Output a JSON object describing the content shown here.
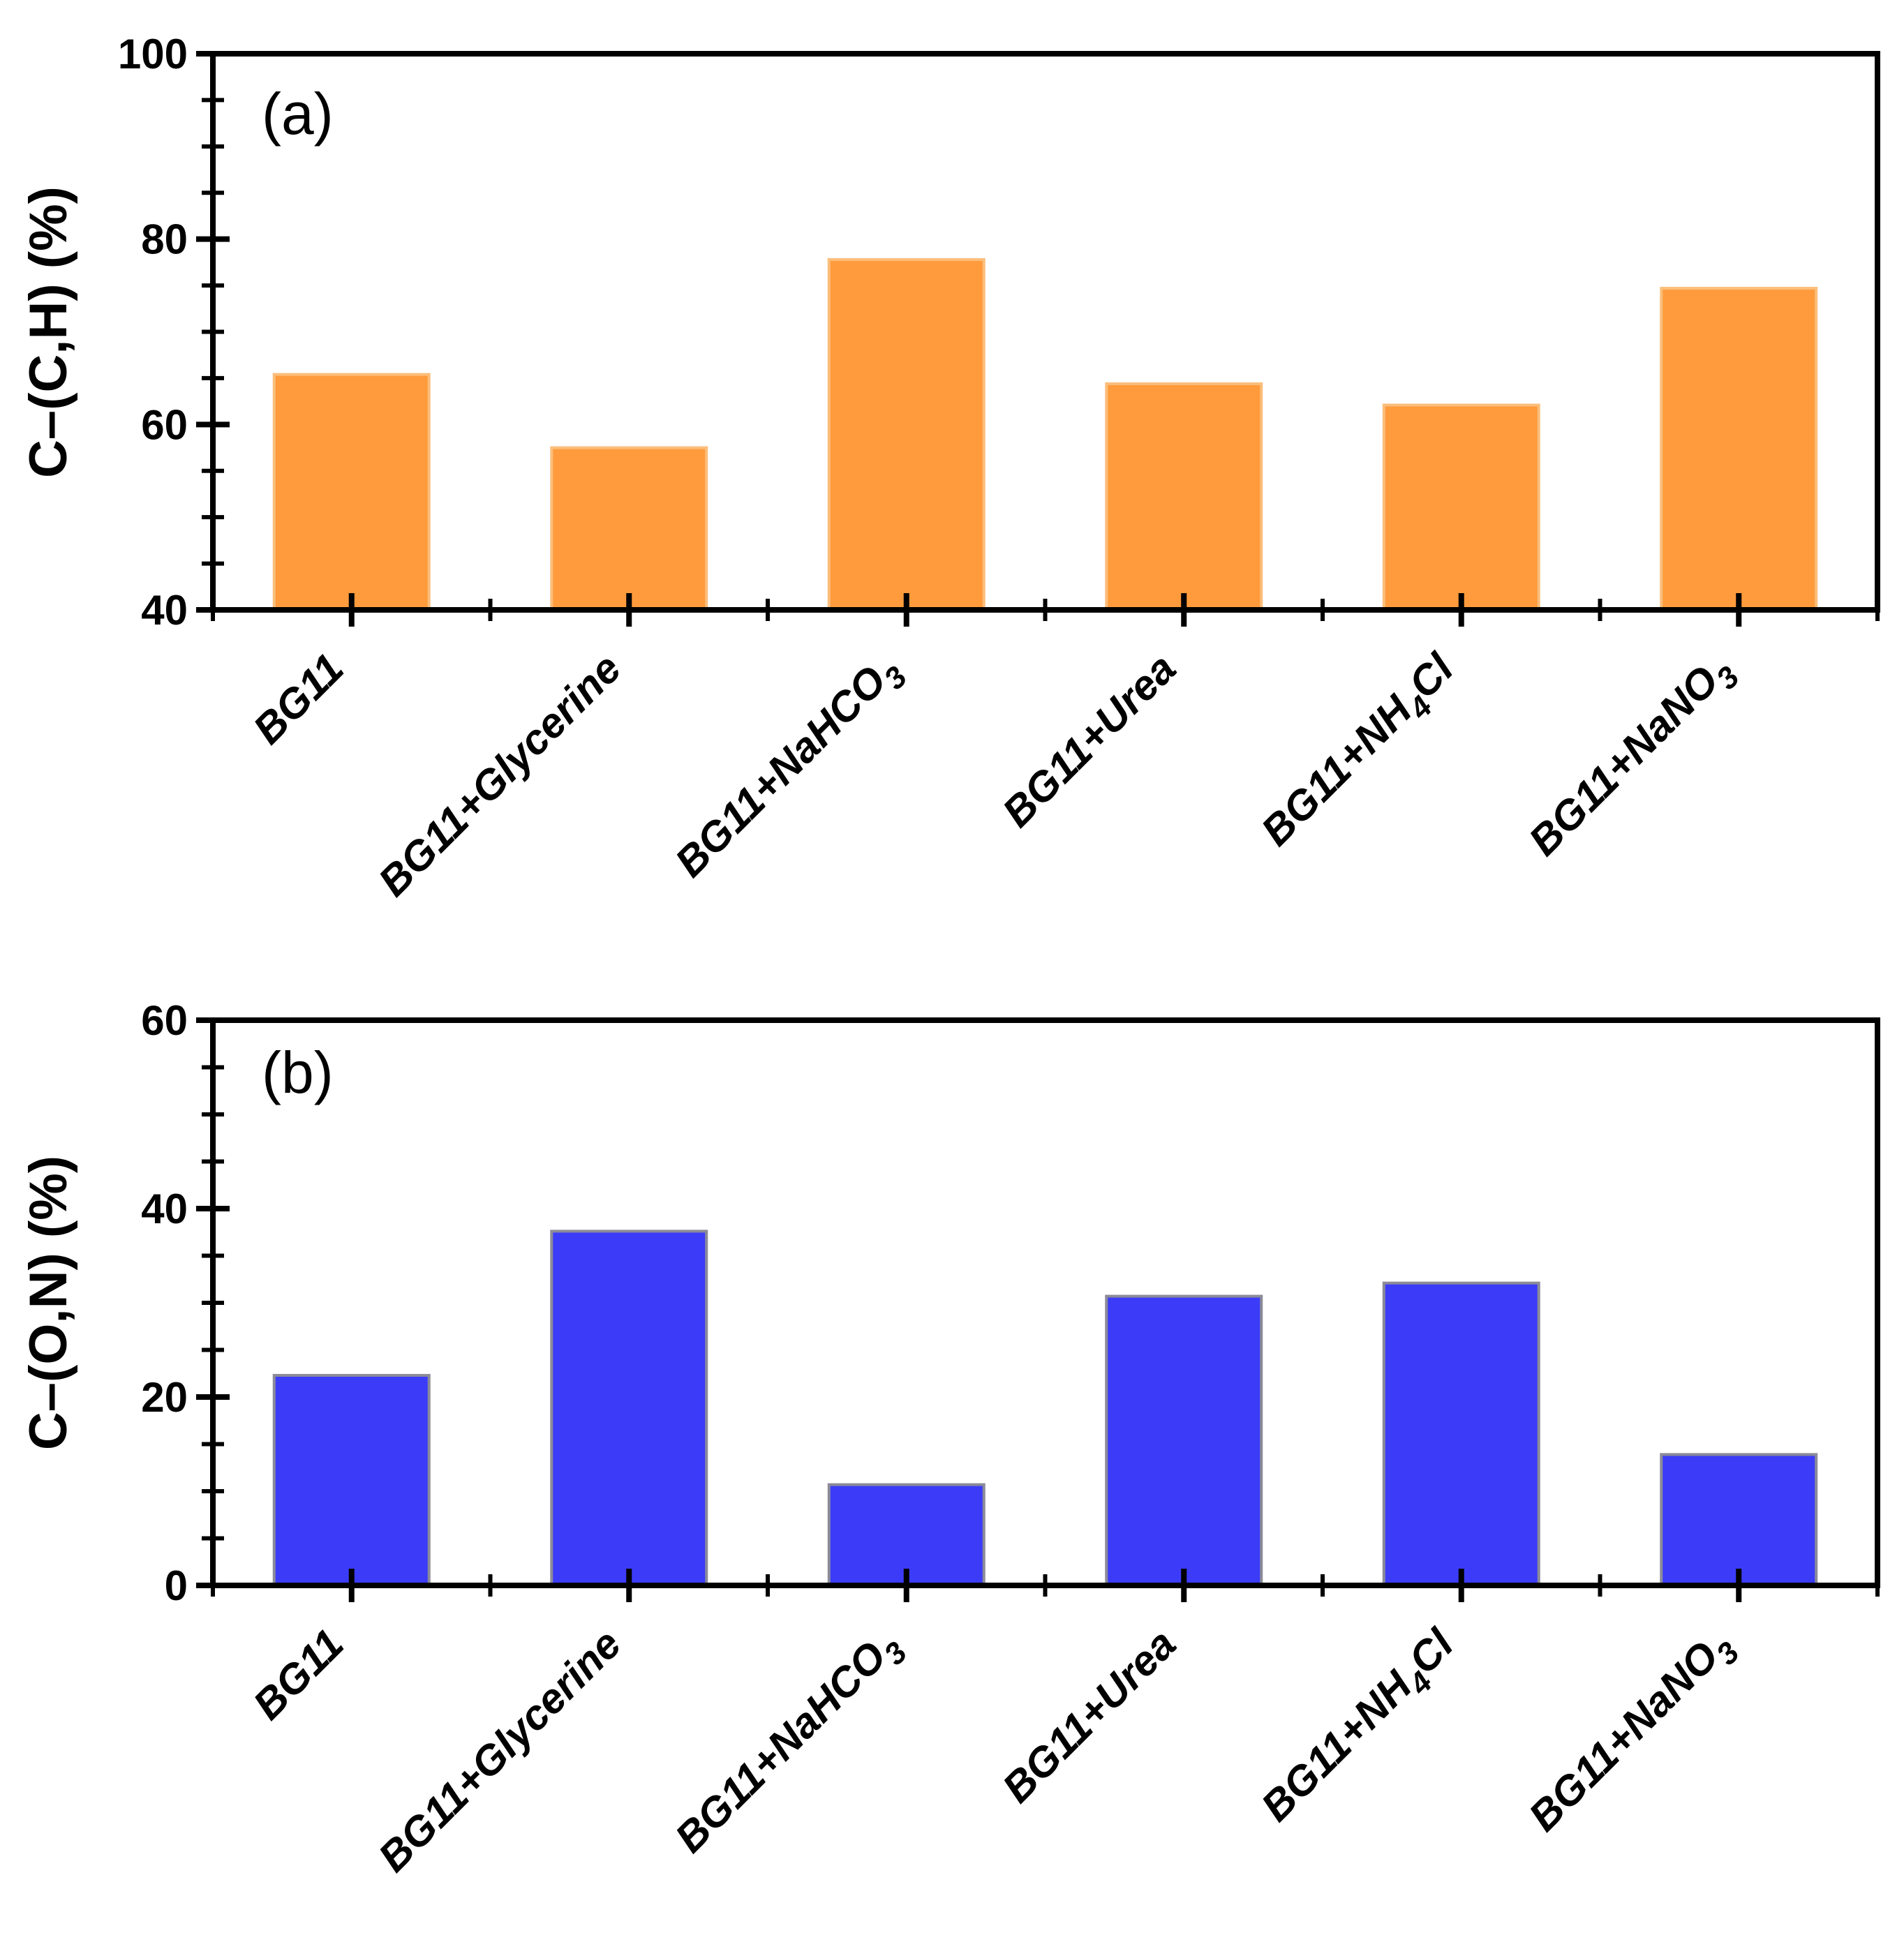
{
  "figure": {
    "background": "#FFFFFF",
    "ink_color": "#000000"
  },
  "chart_data": [
    {
      "type": "bar",
      "panel_label": "(a)",
      "title": "",
      "xlabel": "",
      "ylabel": "C–(C,H)  (%)",
      "categories": [
        "BG11",
        "BG11+Glycerine",
        "BG11+NaHCO3",
        "BG11+Urea",
        "BG11+NH4Cl",
        "BG11+NaNO3"
      ],
      "categories_rich": [
        [
          {
            "t": "BG11"
          }
        ],
        [
          {
            "t": "BG11+Glycerine"
          }
        ],
        [
          {
            "t": "BG11+NaHCO"
          },
          {
            "t": "3",
            "sub": true
          }
        ],
        [
          {
            "t": "BG11+Urea"
          }
        ],
        [
          {
            "t": "BG11+NH"
          },
          {
            "t": "4",
            "sub": true
          },
          {
            "t": "Cl"
          }
        ],
        [
          {
            "t": "BG11+NaNO"
          },
          {
            "t": "3",
            "sub": true
          }
        ]
      ],
      "values": [
        65.4,
        57.5,
        77.8,
        64.4,
        62.1,
        74.7
      ],
      "ylim": [
        40,
        100
      ],
      "yticks": [
        40,
        60,
        80,
        100
      ],
      "y_minor_step": 5,
      "bar_fill": "#FF9B3C",
      "bar_edge": "#FBBE7C",
      "grid": false,
      "legend": null,
      "category_label_rotation_deg": -45
    },
    {
      "type": "bar",
      "panel_label": "(b)",
      "title": "",
      "xlabel": "",
      "ylabel": "C–(O,N)  (%)",
      "categories": [
        "BG11",
        "BG11+Glycerine",
        "BG11+NaHCO3",
        "BG11+Urea",
        "BG11+NH4Cl",
        "BG11+NaNO3"
      ],
      "categories_rich": [
        [
          {
            "t": "BG11"
          }
        ],
        [
          {
            "t": "BG11+Glycerine"
          }
        ],
        [
          {
            "t": "BG11+NaHCO"
          },
          {
            "t": "3",
            "sub": true
          }
        ],
        [
          {
            "t": "BG11+Urea"
          }
        ],
        [
          {
            "t": "BG11+NH"
          },
          {
            "t": "4",
            "sub": true
          },
          {
            "t": "Cl"
          }
        ],
        [
          {
            "t": "BG11+NaNO"
          },
          {
            "t": "3",
            "sub": true
          }
        ]
      ],
      "values": [
        22.3,
        37.6,
        10.7,
        30.7,
        32.1,
        13.9
      ],
      "ylim": [
        0,
        60
      ],
      "yticks": [
        0,
        20,
        40,
        60
      ],
      "y_minor_step": 5,
      "bar_fill": "#3C3CF8",
      "bar_edge": "#8B8B99",
      "grid": false,
      "legend": null,
      "category_label_rotation_deg": -45
    }
  ]
}
